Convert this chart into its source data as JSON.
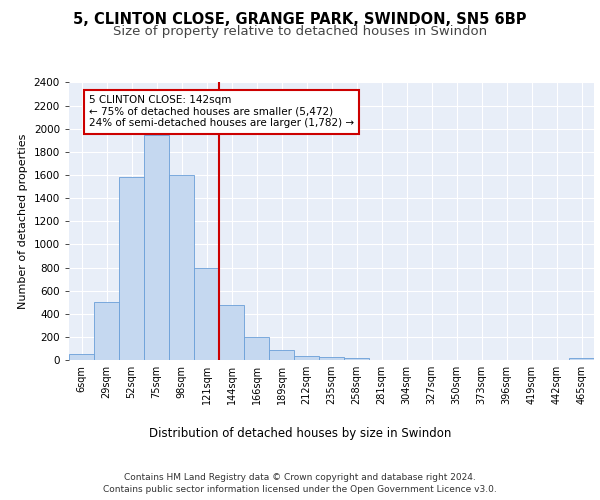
{
  "title_line1": "5, CLINTON CLOSE, GRANGE PARK, SWINDON, SN5 6BP",
  "title_line2": "Size of property relative to detached houses in Swindon",
  "xlabel": "Distribution of detached houses by size in Swindon",
  "ylabel": "Number of detached properties",
  "footer_line1": "Contains HM Land Registry data © Crown copyright and database right 2024.",
  "footer_line2": "Contains public sector information licensed under the Open Government Licence v3.0.",
  "annotation_line1": "5 CLINTON CLOSE: 142sqm",
  "annotation_line2": "← 75% of detached houses are smaller (5,472)",
  "annotation_line3": "24% of semi-detached houses are larger (1,782) →",
  "bar_labels": [
    "6sqm",
    "29sqm",
    "52sqm",
    "75sqm",
    "98sqm",
    "121sqm",
    "144sqm",
    "166sqm",
    "189sqm",
    "212sqm",
    "235sqm",
    "258sqm",
    "281sqm",
    "304sqm",
    "327sqm",
    "350sqm",
    "373sqm",
    "396sqm",
    "419sqm",
    "442sqm",
    "465sqm"
  ],
  "bar_values": [
    55,
    500,
    1580,
    1950,
    1600,
    800,
    475,
    195,
    90,
    35,
    28,
    20,
    0,
    0,
    0,
    0,
    0,
    0,
    0,
    0,
    20
  ],
  "bar_color": "#c5d8f0",
  "bar_edge_color": "#6a9fd8",
  "vline_color": "#cc0000",
  "ylim": [
    0,
    2400
  ],
  "yticks": [
    0,
    200,
    400,
    600,
    800,
    1000,
    1200,
    1400,
    1600,
    1800,
    2000,
    2200,
    2400
  ],
  "bg_color": "#e8eef8",
  "grid_color": "#ffffff",
  "annotation_box_color": "#cc0000",
  "title_fontsize": 10.5,
  "subtitle_fontsize": 9.5
}
